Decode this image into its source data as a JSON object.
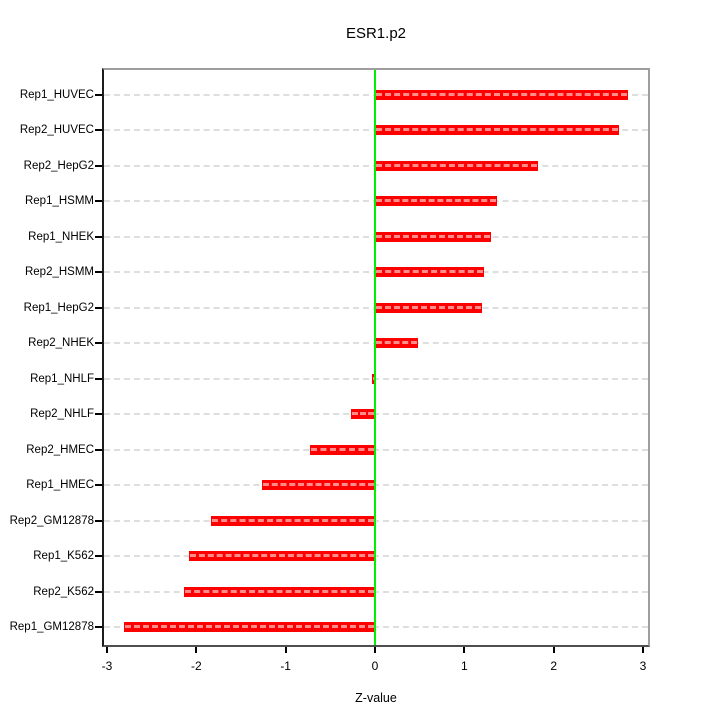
{
  "chart_data": {
    "type": "bar",
    "orientation": "horizontal",
    "title": "ESR1.p2",
    "xlabel": "Z-value",
    "ylabel": "",
    "categories": [
      "Rep1_HUVEC",
      "Rep2_HUVEC",
      "Rep2_HepG2",
      "Rep1_HSMM",
      "Rep1_NHEK",
      "Rep2_HSMM",
      "Rep1_HepG2",
      "Rep2_NHEK",
      "Rep1_NHLF",
      "Rep2_NHLF",
      "Rep2_HMEC",
      "Rep1_HMEC",
      "Rep2_GM12878",
      "Rep1_K562",
      "Rep2_K562",
      "Rep1_GM12878"
    ],
    "values": [
      2.83,
      2.73,
      1.83,
      1.37,
      1.3,
      1.22,
      1.2,
      0.48,
      -0.03,
      -0.27,
      -0.73,
      -1.27,
      -1.84,
      -2.08,
      -2.14,
      -2.81
    ],
    "xlim": [
      -3,
      3
    ],
    "x_ticks": [
      -3,
      -2,
      -1,
      0,
      1,
      2,
      3
    ],
    "grid": "dashed horizontal line per category",
    "legend": "none",
    "colors": {
      "bar": "#ff0000",
      "zero_line": "#00f000",
      "gridline": "#dedede",
      "frame_light": "#9e9e9e",
      "frame_dark": "#1c1c1c"
    }
  }
}
